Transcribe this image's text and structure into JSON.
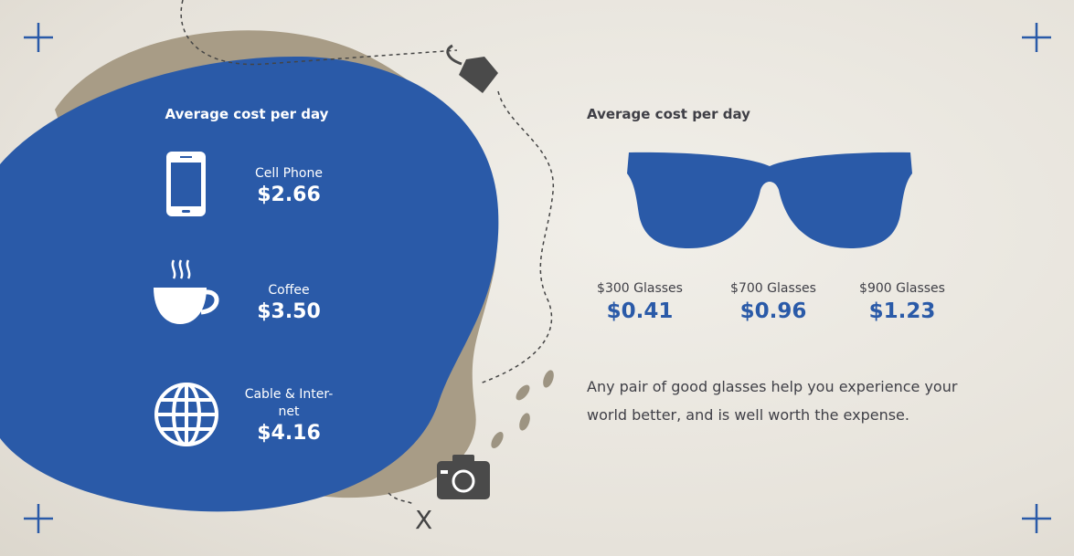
{
  "left_panel": {
    "title": "Average cost per day",
    "items": [
      {
        "label": "Cell Phone",
        "value": "$2.66"
      },
      {
        "label": "Coffee",
        "value": "$3.50"
      },
      {
        "label": "Cable & Inter-net",
        "value": "$4.16"
      }
    ]
  },
  "right_panel": {
    "title": "Average cost per day",
    "items": [
      {
        "label": "$300 Glasses",
        "value": "$0.41"
      },
      {
        "label": "$700 Glasses",
        "value": "$0.96"
      },
      {
        "label": "$900 Glasses",
        "value": "$1.23"
      }
    ],
    "description": "Any pair of good glasses help you experience your world better, and is well worth the expense."
  },
  "map_marker": "X"
}
